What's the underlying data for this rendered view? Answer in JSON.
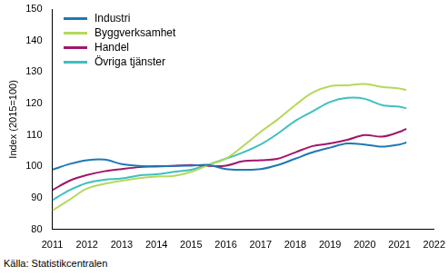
{
  "chart_data": {
    "type": "line",
    "y_label": "Index (2015=100)",
    "source": "Källa: Statistikcentralen",
    "x": [
      2011.0,
      2011.5,
      2012.0,
      2012.5,
      2013.0,
      2013.5,
      2014.0,
      2014.5,
      2015.0,
      2015.5,
      2016.0,
      2016.5,
      2017.0,
      2017.5,
      2018.0,
      2018.5,
      2019.0,
      2019.5,
      2020.0,
      2020.5,
      2021.0,
      2021.2
    ],
    "series": [
      {
        "name": "Industri",
        "color": "#1f78b4",
        "values": [
          99,
          100.8,
          102,
          102.2,
          100.8,
          100.2,
          100,
          100.2,
          100.3,
          100.5,
          99.2,
          99,
          99.2,
          100.5,
          102.5,
          104.5,
          106,
          107.3,
          107,
          106.3,
          107,
          107.6
        ]
      },
      {
        "name": "Byggverksamhet",
        "color": "#b5d95a",
        "values": [
          86,
          89.5,
          93,
          94.5,
          95.5,
          96.3,
          96.8,
          97,
          98.3,
          100.5,
          102.5,
          106.5,
          111,
          115,
          119.5,
          123.5,
          125.5,
          125.8,
          126.2,
          125.3,
          124.8,
          124.3
        ]
      },
      {
        "name": "Handel",
        "color": "#a1166a",
        "values": [
          92.5,
          95.5,
          97.3,
          98.5,
          99.2,
          99.8,
          100.1,
          100.2,
          100.5,
          100.2,
          100.3,
          101.7,
          102,
          102.5,
          104.5,
          106.5,
          107.3,
          108.5,
          110,
          109.5,
          111,
          112
        ]
      },
      {
        "name": "Övriga tjänster",
        "color": "#3fbfbf",
        "values": [
          89.3,
          92.5,
          94.8,
          95.8,
          96.2,
          97.2,
          97.5,
          98.3,
          99,
          100.6,
          102.5,
          104.5,
          107,
          110.5,
          114.5,
          117.5,
          120.5,
          121.8,
          121.5,
          119.5,
          119,
          118.5
        ]
      }
    ],
    "xlim": [
      2011,
      2022
    ],
    "xticks": [
      2011,
      2012,
      2013,
      2014,
      2015,
      2016,
      2017,
      2018,
      2019,
      2020,
      2021,
      2022
    ],
    "ylim": [
      80,
      150
    ],
    "yticks": [
      80,
      90,
      100,
      110,
      120,
      130,
      140,
      150
    ],
    "grid": false,
    "legend": "top-left"
  }
}
